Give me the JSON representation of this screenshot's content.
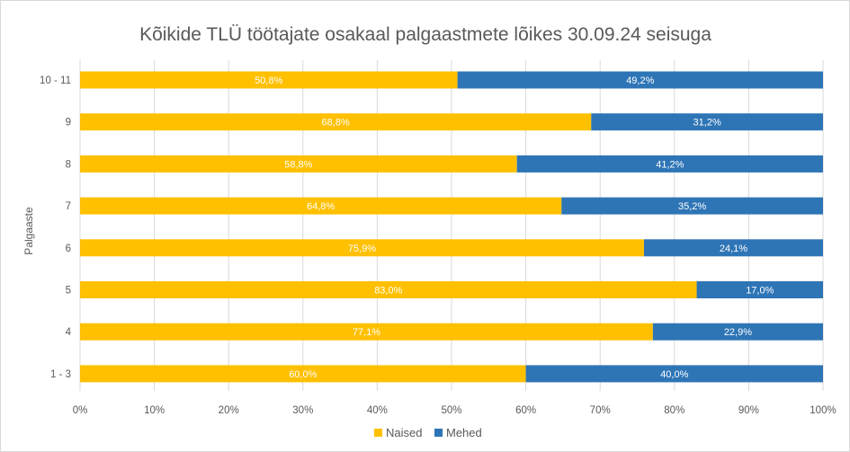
{
  "chart_data": {
    "type": "bar",
    "orientation": "horizontal",
    "stacked": "percent",
    "title": "Kõikide TLÜ töötajate osakaal palgaastmete lõikes 30.09.24 seisuga",
    "ylabel": "Palgaaste",
    "xlabel": "",
    "categories": [
      "10 - 11",
      "9",
      "8",
      "7",
      "6",
      "5",
      "4",
      "1 - 3"
    ],
    "series": [
      {
        "name": "Naised",
        "color": "#FFC000",
        "values": [
          50.8,
          68.8,
          58.8,
          64.8,
          75.9,
          83.0,
          77.1,
          60.0
        ],
        "labels": [
          "50,8%",
          "68,8%",
          "58,8%",
          "64,8%",
          "75,9%",
          "83,0%",
          "77,1%",
          "60,0%"
        ]
      },
      {
        "name": "Mehed",
        "color": "#2E75B6",
        "values": [
          49.2,
          31.2,
          41.2,
          35.2,
          24.1,
          17.0,
          22.9,
          40.0
        ],
        "labels": [
          "49,2%",
          "31,2%",
          "41,2%",
          "35,2%",
          "24,1%",
          "17,0%",
          "22,9%",
          "40,0%"
        ]
      }
    ],
    "xlim": [
      0,
      100
    ],
    "x_ticks": [
      "0%",
      "10%",
      "20%",
      "30%",
      "40%",
      "50%",
      "60%",
      "70%",
      "80%",
      "90%",
      "100%"
    ],
    "grid": true,
    "legend": "bottom"
  }
}
